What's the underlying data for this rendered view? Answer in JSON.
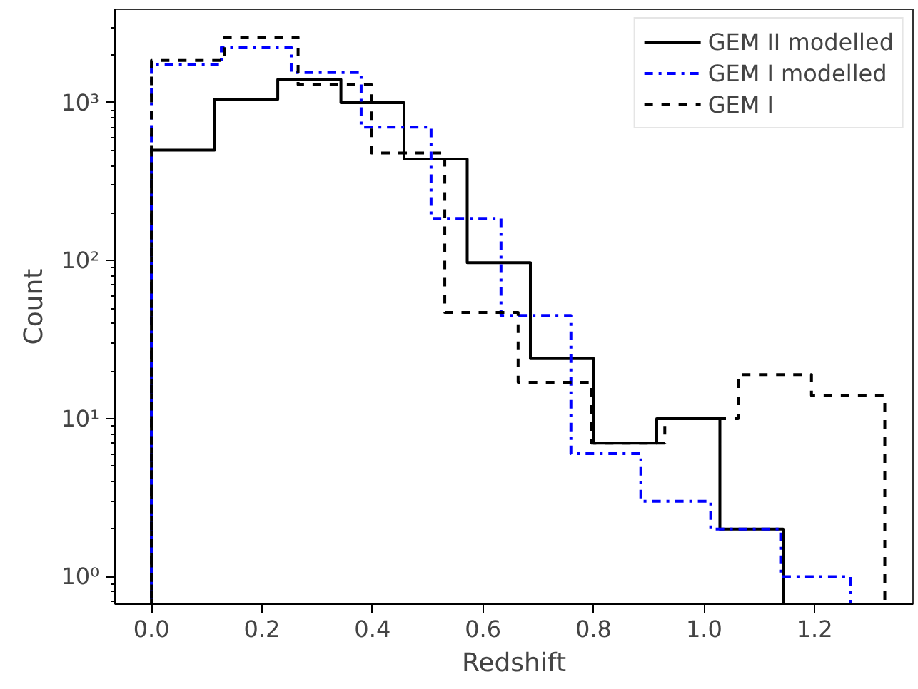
{
  "chart_data": {
    "type": "step",
    "xlabel": "Redshift",
    "ylabel": "Count",
    "log": "y",
    "grid": false,
    "legend": "top right",
    "xlim": [
      -0.066,
      1.378
    ],
    "xticks": [
      {
        "value": 0,
        "label": "0.0"
      },
      0.2,
      0.4,
      0.6,
      0.8,
      {
        "value": 1,
        "label": "1.0"
      },
      1.2
    ],
    "ylim": [
      0.67,
      3900
    ],
    "yticks": [
      {
        "value": 1,
        "label": "10⁰"
      },
      {
        "value": 10,
        "label": "10¹"
      },
      {
        "value": 100,
        "label": "10²"
      },
      {
        "value": 1000,
        "label": "10³"
      }
    ],
    "series": [
      {
        "name": "GEM II modelled",
        "color": "#000000",
        "line_style": "solid",
        "x": [
          0,
          0.1143,
          0.2286,
          0.3429,
          0.4571,
          0.5714,
          0.6857,
          0.8,
          0.9143,
          1.0286,
          1.143
        ],
        "values": [
          500,
          1050,
          1400,
          1000,
          440,
          97,
          24,
          7,
          10,
          2,
          2
        ]
      },
      {
        "name": "GEM I modelled",
        "color": "#0000ff",
        "line_style": "dashdot",
        "x": [
          0,
          0.1265,
          0.253,
          0.3795,
          0.506,
          0.6325,
          0.759,
          0.8855,
          1.012,
          1.1385,
          1.265
        ],
        "values": [
          1750,
          2250,
          1550,
          700,
          185,
          45,
          6,
          3,
          2,
          1,
          1
        ]
      },
      {
        "name": "GEM I",
        "color": "#000000",
        "line_style": "dashed",
        "x": [
          0,
          0.1327,
          0.2654,
          0.3981,
          0.5308,
          0.6635,
          0.7962,
          0.9289,
          1.0616,
          1.1943,
          1.327
        ],
        "values": [
          1850,
          2600,
          1300,
          480,
          47,
          17,
          7,
          10,
          19,
          14,
          14
        ]
      }
    ]
  }
}
